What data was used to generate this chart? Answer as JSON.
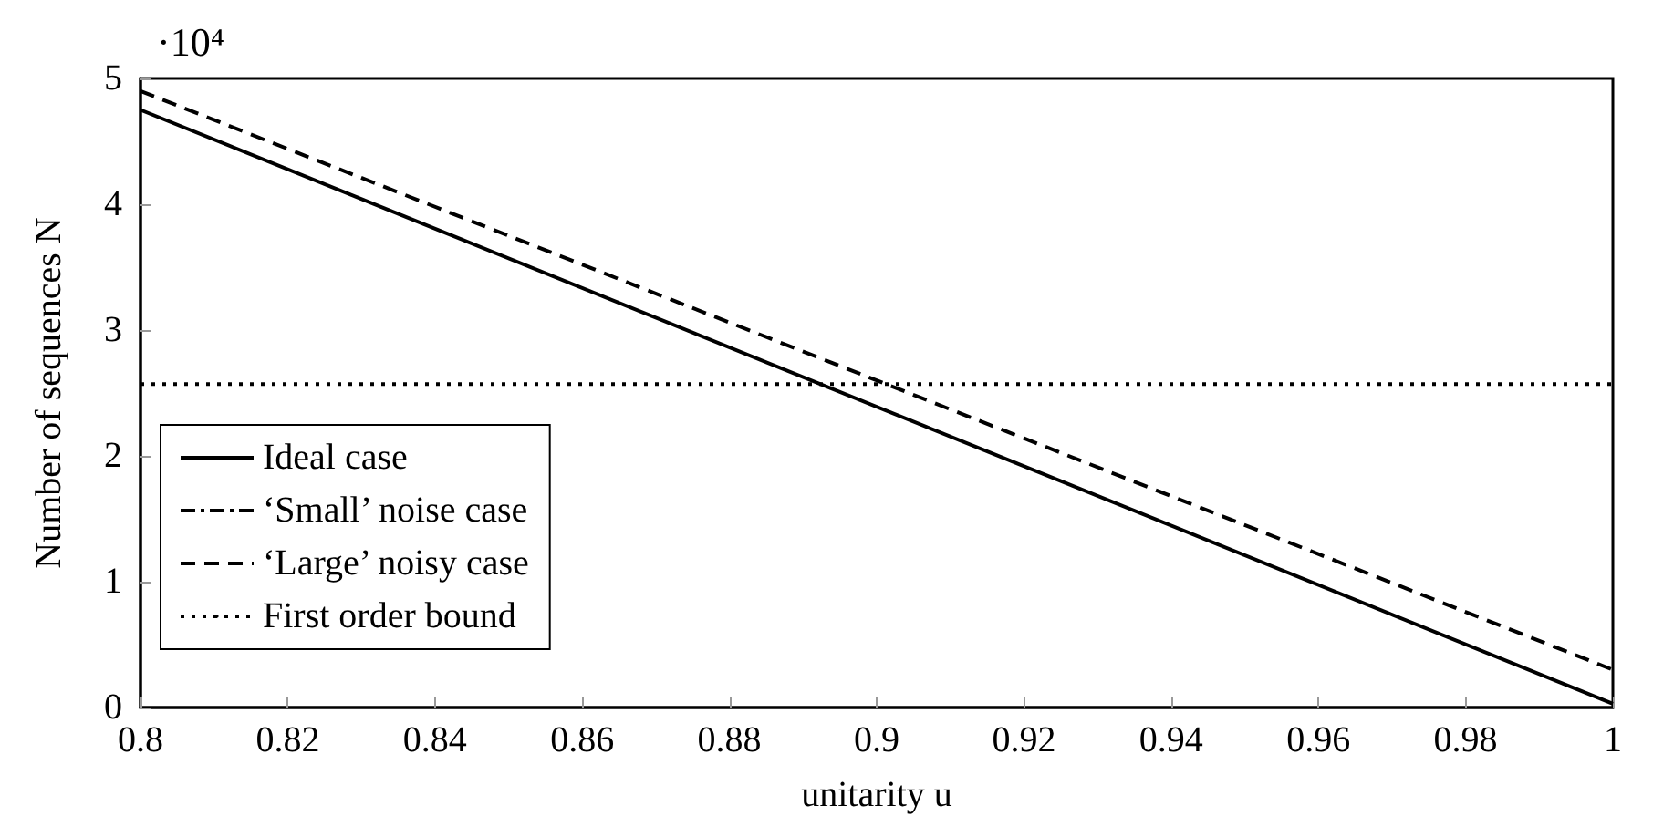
{
  "chart_data": {
    "type": "line",
    "xlabel": "unitarity u",
    "ylabel": "Number of sequences N",
    "x": [
      0.8,
      1
    ],
    "series": [
      {
        "name": "Ideal case",
        "color": "#000000",
        "line_style": "solid",
        "values": [
          4.75,
          0.03
        ]
      },
      {
        "name": "‘Small’ noise case",
        "color": "#000000",
        "line_style": "dashdot",
        "values": [
          null,
          null
        ]
      },
      {
        "name": "‘Large’ noisy case",
        "color": "#000000",
        "line_style": "dashed",
        "values": [
          4.9,
          0.3
        ]
      },
      {
        "name": "First order bound",
        "color": "#000000",
        "line_style": "dotted",
        "values": [
          2.57,
          2.57
        ]
      }
    ],
    "xlim": [
      0.8,
      1
    ],
    "xticks": [
      0.8,
      0.82,
      0.84,
      0.86,
      0.88,
      0.9,
      0.92,
      0.94,
      0.96,
      0.98,
      1
    ],
    "ylim": [
      0,
      5
    ],
    "yticks": [
      0,
      1,
      2,
      3,
      4,
      5
    ],
    "annotations": [
      "·10⁴"
    ],
    "legend": "bottom left",
    "grid": false,
    "marker": "none"
  }
}
